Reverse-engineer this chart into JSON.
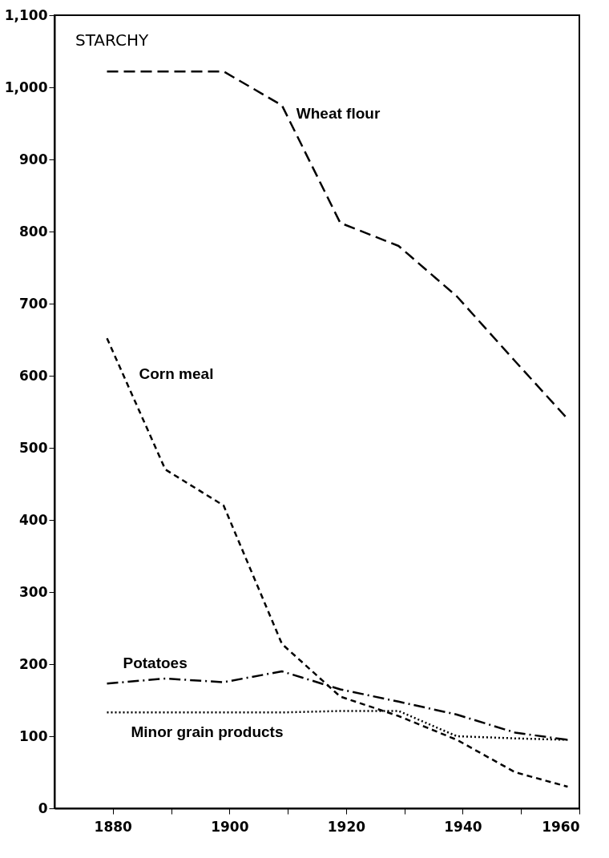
{
  "chart_data": {
    "type": "line",
    "title": "STARCHY",
    "xlim": [
      1870,
      1960
    ],
    "xticks": [
      1880,
      {
        "value": 1890,
        "label": null
      },
      1900,
      {
        "value": 1910,
        "label": null
      },
      1920,
      {
        "value": 1930,
        "label": null
      },
      1940,
      {
        "value": 1950,
        "label": null
      },
      1960
    ],
    "ylim": [
      0,
      1100
    ],
    "yticks": [
      {
        "value": 0,
        "label": "0"
      },
      {
        "value": 100,
        "label": "100"
      },
      {
        "value": 200,
        "label": "200"
      },
      {
        "value": 300,
        "label": "300"
      },
      {
        "value": 400,
        "label": "400"
      },
      {
        "value": 500,
        "label": "500"
      },
      {
        "value": 600,
        "label": "600"
      },
      {
        "value": 700,
        "label": "700"
      },
      {
        "value": 800,
        "label": "800"
      },
      {
        "value": 900,
        "label": "900"
      },
      {
        "value": 1000,
        "label": "1,000"
      },
      {
        "value": 1100,
        "label": "1,100"
      }
    ],
    "grid": false,
    "marker": "none",
    "series": [
      {
        "name": "Wheat flour",
        "color": "#000000",
        "line_style": "longdash",
        "x": [
          1879,
          1889,
          1899,
          1909,
          1919,
          1929,
          1939,
          1949,
          1958
        ],
        "values": [
          1022,
          1022,
          1022,
          975,
          812,
          780,
          710,
          620,
          540
        ]
      },
      {
        "name": "Corn meal",
        "color": "#000000",
        "line_style": "dashed",
        "x": [
          1879,
          1889,
          1899,
          1909,
          1919,
          1929,
          1939,
          1949,
          1958
        ],
        "values": [
          652,
          470,
          420,
          228,
          155,
          128,
          95,
          50,
          30
        ]
      },
      {
        "name": "Potatoes",
        "color": "#000000",
        "line_style": "dashdot",
        "x": [
          1879,
          1889,
          1899,
          1909,
          1919,
          1929,
          1939,
          1949,
          1958
        ],
        "values": [
          173,
          180,
          175,
          190,
          165,
          148,
          130,
          105,
          95
        ]
      },
      {
        "name": "Minor grain products",
        "color": "#000000",
        "line_style": "dotted",
        "x": [
          1879,
          1889,
          1899,
          1909,
          1919,
          1929,
          1939,
          1949,
          1958
        ],
        "values": [
          133,
          133,
          133,
          133,
          135,
          135,
          100,
          97,
          95
        ]
      }
    ]
  }
}
